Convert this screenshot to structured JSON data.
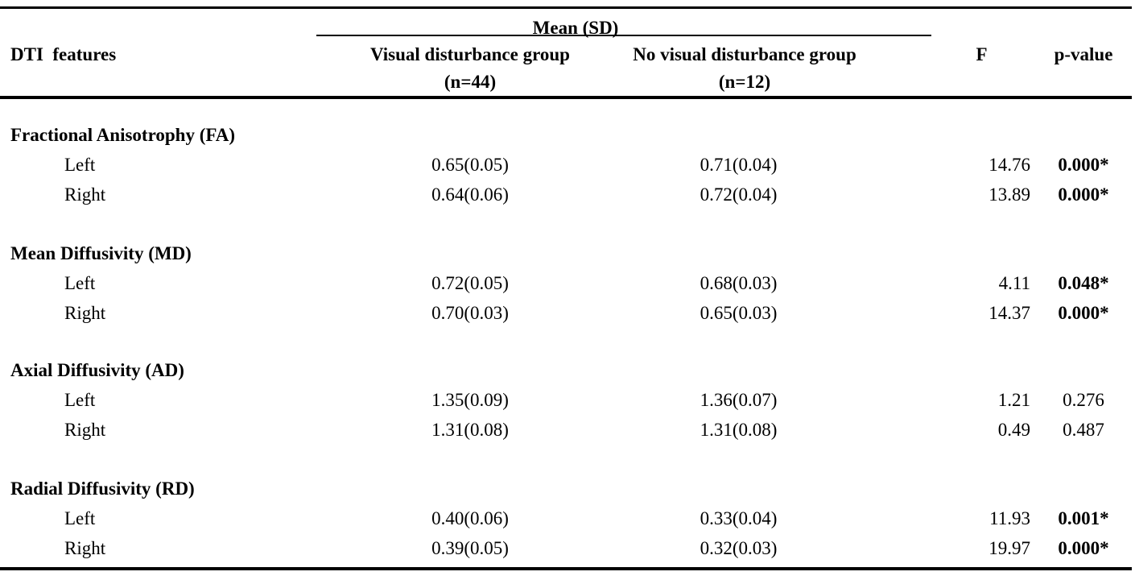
{
  "table": {
    "header": {
      "features_label": "DTI  features",
      "span_label": "Mean (SD)",
      "group1_label": "Visual disturbance group",
      "group1_n": "(n=44)",
      "group2_label": "No visual disturbance group",
      "group2_n": "(n=12)",
      "f_label": "F",
      "p_label": "p-value"
    },
    "sections": [
      {
        "title": "Fractional Anisotrophy (FA)",
        "rows": [
          {
            "label": "Left",
            "g1": "0.65(0.05)",
            "g2": "0.71(0.04)",
            "f": "14.76",
            "p": "0.000*",
            "sig": true
          },
          {
            "label": "Right",
            "g1": "0.64(0.06)",
            "g2": "0.72(0.04)",
            "f": "13.89",
            "p": "0.000*",
            "sig": true
          }
        ]
      },
      {
        "title": "Mean Diffusivity (MD)",
        "rows": [
          {
            "label": "Left",
            "g1": "0.72(0.05)",
            "g2": "0.68(0.03)",
            "f": "4.11",
            "p": "0.048*",
            "sig": true
          },
          {
            "label": "Right",
            "g1": "0.70(0.03)",
            "g2": "0.65(0.03)",
            "f": "14.37",
            "p": "0.000*",
            "sig": true
          }
        ]
      },
      {
        "title": "Axial Diffusivity (AD)",
        "rows": [
          {
            "label": "Left",
            "g1": "1.35(0.09)",
            "g2": "1.36(0.07)",
            "f": "1.21",
            "p": "0.276",
            "sig": false
          },
          {
            "label": "Right",
            "g1": "1.31(0.08)",
            "g2": "1.31(0.08)",
            "f": "0.49",
            "p": "0.487",
            "sig": false
          }
        ]
      },
      {
        "title": "Radial Diffusivity (RD)",
        "rows": [
          {
            "label": "Left",
            "g1": "0.40(0.06)",
            "g2": "0.33(0.04)",
            "f": "11.93",
            "p": "0.001*",
            "sig": true
          },
          {
            "label": "Right",
            "g1": "0.39(0.05)",
            "g2": "0.32(0.03)",
            "f": "19.97",
            "p": "0.000*",
            "sig": true
          }
        ]
      }
    ]
  },
  "chart_data": {
    "type": "table",
    "columns": [
      "DTI features",
      "Visual disturbance group (n=44) Mean (SD)",
      "No visual disturbance group (n=12) Mean (SD)",
      "F",
      "p-value"
    ],
    "rows": [
      [
        "Fractional Anisotrophy (FA) Left",
        "0.65(0.05)",
        "0.71(0.04)",
        14.76,
        "0.000*"
      ],
      [
        "Fractional Anisotrophy (FA) Right",
        "0.64(0.06)",
        "0.72(0.04)",
        13.89,
        "0.000*"
      ],
      [
        "Mean Diffusivity (MD) Left",
        "0.72(0.05)",
        "0.68(0.03)",
        4.11,
        "0.048*"
      ],
      [
        "Mean Diffusivity (MD) Right",
        "0.70(0.03)",
        "0.65(0.03)",
        14.37,
        "0.000*"
      ],
      [
        "Axial Diffusivity (AD) Left",
        "1.35(0.09)",
        "1.36(0.07)",
        1.21,
        "0.276"
      ],
      [
        "Axial Diffusivity (AD) Right",
        "1.31(0.08)",
        "1.31(0.08)",
        0.49,
        "0.487"
      ],
      [
        "Radial Diffusivity (RD) Left",
        "0.40(0.06)",
        "0.33(0.04)",
        11.93,
        "0.001*"
      ],
      [
        "Radial Diffusivity (RD) Right",
        "0.39(0.05)",
        "0.32(0.03)",
        19.97,
        "0.000*"
      ]
    ]
  }
}
